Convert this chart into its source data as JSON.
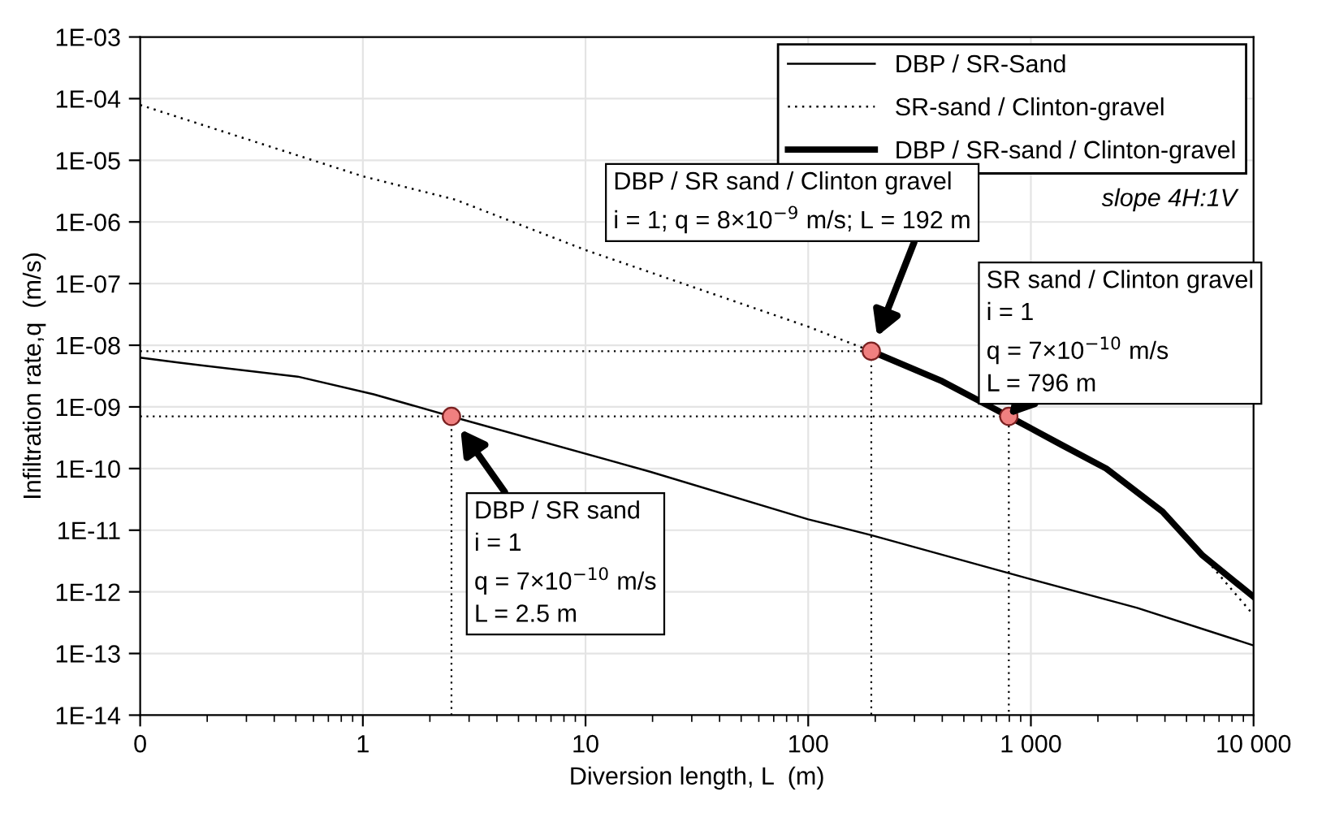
{
  "chart_data": {
    "type": "line",
    "xlabel": "Diversion length, L  (m)",
    "ylabel": "Infiltration rate,q  (m/s)",
    "log": "xy",
    "grid": true,
    "legend": "top right",
    "xlim": [
      0.1,
      10000
    ],
    "ylim": [
      1e-14,
      0.001
    ],
    "xticks": [
      {
        "value": 0.1,
        "label": "0"
      },
      1,
      10,
      100,
      {
        "value": 1000,
        "label": "1 000"
      },
      {
        "value": 10000,
        "label": "10 000"
      }
    ],
    "yticks": [
      {
        "value": 1e-14,
        "label": "1E-14"
      },
      {
        "value": 1e-13,
        "label": "1E-13"
      },
      {
        "value": 1e-12,
        "label": "1E-12"
      },
      {
        "value": 1e-11,
        "label": "1E-11"
      },
      {
        "value": 1e-10,
        "label": "1E-10"
      },
      {
        "value": 1e-09,
        "label": "1E-09"
      },
      {
        "value": 1e-08,
        "label": "1E-08"
      },
      {
        "value": 1e-07,
        "label": "1E-07"
      },
      {
        "value": 1e-06,
        "label": "1E-06"
      },
      {
        "value": 1e-05,
        "label": "1E-05"
      },
      {
        "value": 0.0001,
        "label": "1E-04"
      },
      {
        "value": 0.001,
        "label": "1E-03"
      }
    ],
    "series": [
      {
        "name": "DBP / SR-Sand",
        "color": "#000000",
        "line_style": "solid",
        "x": [
          0.1,
          0.15,
          0.51,
          1.12,
          2.5,
          19.5,
          100,
          192,
          1000,
          3000,
          10000
        ],
        "values": [
          6.3e-09,
          5.2e-09,
          3.1e-09,
          1.6e-09,
          7e-10,
          8.9e-11,
          1.5e-11,
          8.3e-12,
          1.6e-12,
          5.5e-13,
          1.35e-13
        ]
      },
      {
        "name": "SR-sand / Clinton-gravel",
        "color": "#000000",
        "line_style": "dotted",
        "x": [
          0.1,
          1,
          2.6,
          10,
          100,
          192,
          400,
          796,
          1380,
          2180,
          3900,
          5900,
          10000
        ],
        "values": [
          7.9e-05,
          5.5e-06,
          2.3e-06,
          3.5e-07,
          2e-08,
          8e-09,
          2.6e-09,
          7e-10,
          2.4e-10,
          1e-10,
          2e-11,
          3.9e-12,
          4.2e-13
        ]
      },
      {
        "name": "DBP / SR-sand / Clinton-gravel",
        "color": "#000000",
        "line_style": "solid",
        "x": [
          192,
          400,
          796,
          1380,
          2180,
          3900,
          5900,
          10000
        ],
        "values": [
          8e-09,
          2.6e-09,
          7e-10,
          2.4e-10,
          1e-10,
          2e-11,
          3.9e-12,
          8.3e-13
        ]
      },
      {
        "type": "line",
        "color": "#000000",
        "line_style": "dotted",
        "x": [
          0.1,
          192,
          192
        ],
        "values": [
          8e-09,
          8e-09,
          1e-14
        ]
      },
      {
        "type": "line",
        "color": "#000000",
        "line_style": "dotted",
        "x": [
          0.1,
          796,
          796
        ],
        "values": [
          7e-10,
          7e-10,
          1e-14
        ]
      },
      {
        "type": "line",
        "color": "#000000",
        "line_style": "dotted",
        "x": [
          2.5,
          2.5
        ],
        "values": [
          7e-10,
          1e-14
        ]
      },
      {
        "type": "scatter",
        "color": "#f08080",
        "marker": "circle",
        "x": [
          2.5,
          192,
          796
        ],
        "values": [
          7e-10,
          8e-09,
          7e-10
        ]
      }
    ],
    "annotations": [
      "DBP / SR sand\ni = 1\nq = 7×10$^{−10}$ m/s\nL = 2.5 m",
      "DBP / SR sand / Clinton gravel\ni = 1; q = 8×10$^{−9}$ m/s; L = 192 m",
      "SR sand / Clinton gravel\ni = 1\nq = 7×10$^{−10}$ m/s\nL = 796 m",
      "slope 4H:1V"
    ]
  }
}
